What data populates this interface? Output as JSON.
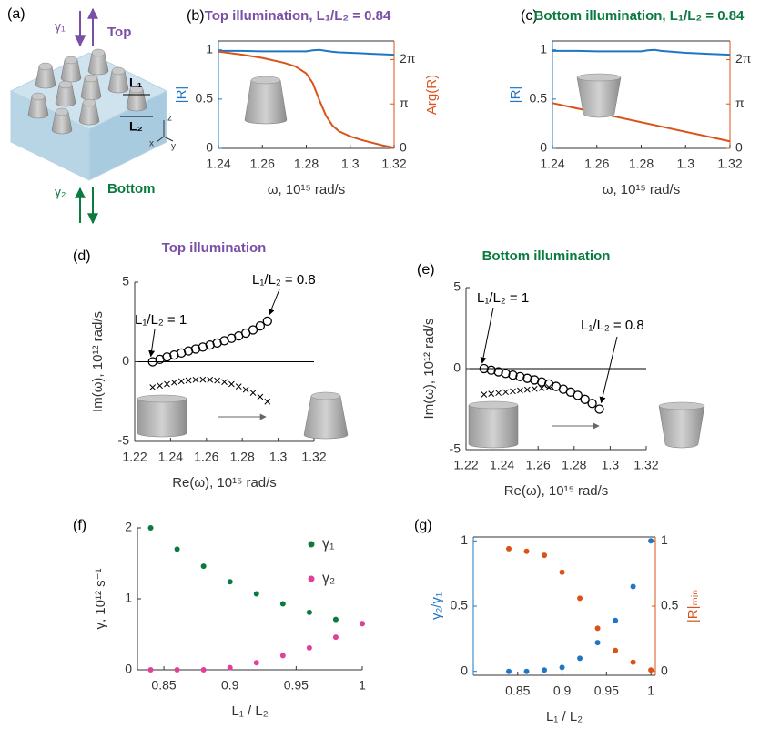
{
  "diagram": {
    "label": "(a)",
    "gamma1": "γ₁",
    "top": "Top",
    "gamma2": "γ₂",
    "bottom": "Bottom",
    "l1": "L₁",
    "l2": "L₂",
    "axis_z": "z",
    "axis_x": "x",
    "axis_y": "y"
  },
  "chart_data": [
    {
      "type": "line",
      "panel_label": "(b)",
      "title": "Top illumination, L₁/L₂ = 0.84",
      "title_color": "#7a4fa6",
      "xlabel": "ω, 10¹⁵ rad/s",
      "ylabel": "|R|",
      "y2label": "Arg(R)",
      "xlim": [
        1.24,
        1.32
      ],
      "xticks": [
        1.24,
        1.26,
        1.28,
        1.3,
        1.32
      ],
      "ylim": [
        0,
        1.09
      ],
      "yticks": [
        0,
        0.5,
        1
      ],
      "y2lim": [
        0,
        7.6
      ],
      "y2ticks": [
        0,
        {
          "value": 3.1416,
          "label": "π"
        },
        {
          "value": 6.2832,
          "label": "2π"
        }
      ],
      "series": [
        {
          "name": "|R|",
          "color": "#1f77c4",
          "axis": "y",
          "x": [
            1.24,
            1.25,
            1.26,
            1.27,
            1.275,
            1.28,
            1.283,
            1.286,
            1.289,
            1.292,
            1.295,
            1.3,
            1.305,
            1.31,
            1.315,
            1.32
          ],
          "values": [
            0.99,
            0.99,
            0.985,
            0.985,
            0.985,
            0.985,
            0.995,
            1.0,
            0.99,
            0.98,
            0.975,
            0.97,
            0.965,
            0.96,
            0.955,
            0.95
          ]
        },
        {
          "name": "Arg(R)",
          "color": "#d95319",
          "axis": "y2",
          "x": [
            1.24,
            1.25,
            1.26,
            1.27,
            1.275,
            1.28,
            1.283,
            1.286,
            1.289,
            1.292,
            1.295,
            1.3,
            1.305,
            1.31,
            1.315,
            1.32
          ],
          "values": [
            6.85,
            6.65,
            6.4,
            6.05,
            5.8,
            5.3,
            4.6,
            3.4,
            2.3,
            1.6,
            1.2,
            0.85,
            0.6,
            0.4,
            0.2,
            0.05
          ]
        }
      ]
    },
    {
      "type": "line",
      "panel_label": "(c)",
      "title": "Bottom illumination, L₁/L₂ = 0.84",
      "title_color": "#0b7a3e",
      "xlabel": "ω, 10¹⁵ rad/s",
      "ylabel": "|R|",
      "y2label": "Arg(R)",
      "xlim": [
        1.24,
        1.32
      ],
      "xticks": [
        1.24,
        1.26,
        1.28,
        1.3,
        1.32
      ],
      "ylim": [
        0,
        1.09
      ],
      "yticks": [
        0,
        0.5,
        1
      ],
      "y2lim": [
        0,
        7.6
      ],
      "y2ticks": [
        0,
        {
          "value": 3.1416,
          "label": "π"
        },
        {
          "value": 6.2832,
          "label": "2π"
        }
      ],
      "series": [
        {
          "name": "|R|",
          "color": "#1f77c4",
          "axis": "y",
          "x": [
            1.24,
            1.25,
            1.26,
            1.27,
            1.28,
            1.283,
            1.286,
            1.289,
            1.3,
            1.31,
            1.32
          ],
          "values": [
            0.99,
            0.99,
            0.985,
            0.985,
            0.985,
            0.995,
            1.0,
            0.99,
            0.97,
            0.96,
            0.95
          ]
        },
        {
          "name": "Arg(R)",
          "color": "#d95319",
          "axis": "y2",
          "x": [
            1.24,
            1.32
          ],
          "values": [
            3.2,
            0.5
          ]
        }
      ]
    },
    {
      "type": "scatter",
      "panel_label": "(d)",
      "title": "Top illumination",
      "title_color": "#7a4fa6",
      "xlabel": "Re(ω), 10¹⁵ rad/s",
      "ylabel": "Im(ω), 10¹² rad/s",
      "zero_line": true,
      "annotations": [
        "L₁/L₂ = 1",
        "L₁/L₂ = 0.8"
      ],
      "xlim": [
        1.22,
        1.32
      ],
      "xticks": [
        1.22,
        1.24,
        1.26,
        1.28,
        1.3,
        1.32
      ],
      "ylim": [
        -5,
        5
      ],
      "yticks": [
        -5,
        0,
        5
      ],
      "series": [
        {
          "marker": "o",
          "color": "#000000",
          "x": [
            1.23,
            1.234,
            1.238,
            1.242,
            1.246,
            1.25,
            1.254,
            1.258,
            1.262,
            1.266,
            1.27,
            1.274,
            1.278,
            1.282,
            1.286,
            1.29,
            1.294
          ],
          "values": [
            0,
            0.15,
            0.3,
            0.42,
            0.55,
            0.68,
            0.8,
            0.92,
            1.05,
            1.18,
            1.32,
            1.47,
            1.62,
            1.8,
            2.0,
            2.25,
            2.55
          ]
        },
        {
          "marker": "x",
          "color": "#000000",
          "x": [
            1.23,
            1.234,
            1.238,
            1.242,
            1.246,
            1.25,
            1.254,
            1.258,
            1.262,
            1.266,
            1.27,
            1.274,
            1.278,
            1.282,
            1.286,
            1.29,
            1.294
          ],
          "values": [
            -1.6,
            -1.5,
            -1.4,
            -1.3,
            -1.22,
            -1.17,
            -1.13,
            -1.12,
            -1.13,
            -1.18,
            -1.27,
            -1.4,
            -1.55,
            -1.75,
            -1.95,
            -2.2,
            -2.5
          ]
        }
      ]
    },
    {
      "type": "scatter",
      "panel_label": "(e)",
      "title": "Bottom illumination",
      "title_color": "#0b7a3e",
      "xlabel": "Re(ω), 10¹⁵ rad/s",
      "ylabel": "Im(ω), 10¹² rad/s",
      "zero_line": true,
      "annotations": [
        "L₁/L₂ = 1",
        "L₁/L₂ = 0.8"
      ],
      "xlim": [
        1.22,
        1.32
      ],
      "xticks": [
        1.22,
        1.24,
        1.26,
        1.28,
        1.3,
        1.32
      ],
      "ylim": [
        -5,
        5
      ],
      "yticks": [
        -5,
        0,
        5
      ],
      "series": [
        {
          "marker": "o",
          "color": "#000000",
          "x": [
            1.23,
            1.234,
            1.238,
            1.242,
            1.246,
            1.25,
            1.254,
            1.258,
            1.262,
            1.266,
            1.27,
            1.274,
            1.278,
            1.282,
            1.286,
            1.29,
            1.294
          ],
          "values": [
            0,
            -0.1,
            -0.2,
            -0.3,
            -0.4,
            -0.5,
            -0.6,
            -0.7,
            -0.82,
            -0.95,
            -1.1,
            -1.27,
            -1.45,
            -1.65,
            -1.9,
            -2.15,
            -2.5
          ]
        },
        {
          "marker": "x",
          "color": "#000000",
          "x": [
            1.23,
            1.234,
            1.238,
            1.242,
            1.246,
            1.25,
            1.254,
            1.258,
            1.262,
            1.266
          ],
          "values": [
            -1.6,
            -1.55,
            -1.5,
            -1.45,
            -1.4,
            -1.35,
            -1.3,
            -1.25,
            -1.2,
            -1.15
          ]
        }
      ]
    },
    {
      "type": "scatter",
      "panel_label": "(f)",
      "xlabel": "L₁ / L₂",
      "ylabel": "γ, 10¹² s⁻¹",
      "xlim": [
        0.83,
        1.0
      ],
      "xticks": [
        0.85,
        0.9,
        0.95,
        1
      ],
      "ylim": [
        0,
        2
      ],
      "yticks": [
        0,
        1,
        2
      ],
      "series": [
        {
          "name": "γ₁",
          "marker": "dot",
          "color": "#0b7a3e",
          "x": [
            0.84,
            0.86,
            0.88,
            0.9,
            0.92,
            0.94,
            0.96,
            0.98,
            1.0
          ],
          "values": [
            2.0,
            1.7,
            1.46,
            1.24,
            1.07,
            0.93,
            0.81,
            0.71,
            0.65
          ]
        },
        {
          "name": "γ₂",
          "marker": "dot",
          "color": "#e0409c",
          "x": [
            0.84,
            0.86,
            0.88,
            0.9,
            0.92,
            0.94,
            0.96,
            0.98,
            1.0
          ],
          "values": [
            0,
            0,
            0,
            0.03,
            0.1,
            0.2,
            0.31,
            0.46,
            0.65
          ]
        }
      ]
    },
    {
      "type": "scatter",
      "panel_label": "(g)",
      "xlabel": "L₁ / L₂",
      "ylabel": "γ₂/γ₁",
      "y2label": "|R|ₘᵢₙ",
      "xlim": [
        0.8,
        1.005
      ],
      "xticks": [
        0.85,
        0.9,
        0.95,
        1
      ],
      "ylim": [
        -0.03,
        1.03
      ],
      "yticks": [
        0,
        0.5,
        1
      ],
      "y2lim": [
        -0.03,
        1.03
      ],
      "y2ticks": [
        0,
        0.5,
        1
      ],
      "series": [
        {
          "marker": "dot",
          "color": "#1f77c4",
          "axis": "y",
          "x": [
            0.84,
            0.86,
            0.88,
            0.9,
            0.92,
            0.94,
            0.96,
            0.98,
            1.0
          ],
          "values": [
            0,
            0,
            0.01,
            0.03,
            0.1,
            0.22,
            0.39,
            0.65,
            1.0
          ]
        },
        {
          "marker": "dot",
          "color": "#d95319",
          "axis": "y2",
          "x": [
            0.84,
            0.86,
            0.88,
            0.9,
            0.92,
            0.94,
            0.96,
            0.98,
            1.0
          ],
          "values": [
            0.94,
            0.92,
            0.89,
            0.76,
            0.56,
            0.33,
            0.16,
            0.07,
            0.01
          ]
        }
      ]
    }
  ]
}
